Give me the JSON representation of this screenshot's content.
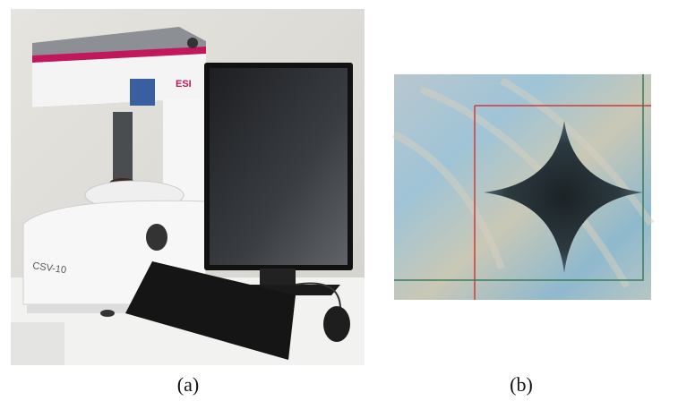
{
  "panels": [
    {
      "caption": "(a)",
      "labels": [
        "ESI",
        "CSV-10"
      ]
    },
    {
      "caption": "(b)"
    }
  ]
}
